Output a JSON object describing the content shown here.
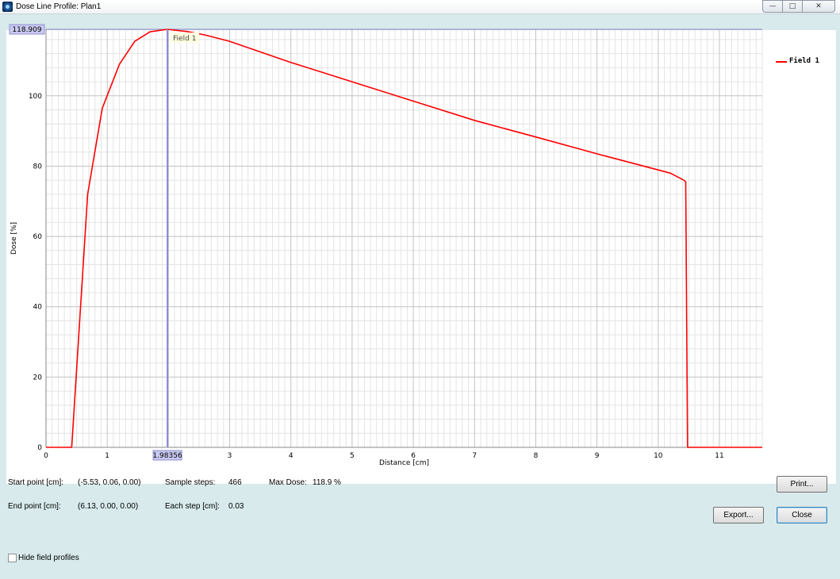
{
  "window": {
    "title": "Dose Line Profile: Plan1",
    "icon": "app-icon",
    "controls": [
      "minimize-icon",
      "maximize-icon",
      "close-icon"
    ]
  },
  "chart_data": {
    "type": "line",
    "title": "",
    "xlabel": "Distance [cm]",
    "ylabel": "Dose [%]",
    "xlim": [
      0,
      11.7
    ],
    "ylim": [
      0,
      118.909
    ],
    "xticks": [
      "0",
      "1",
      "2",
      "3",
      "4",
      "5",
      "6",
      "7",
      "8",
      "9",
      "10",
      "11"
    ],
    "yticks": [
      "0",
      "20",
      "40",
      "60",
      "80",
      "100"
    ],
    "grid": true,
    "legend_position": "right",
    "cursor": {
      "x_label": "1.98356",
      "y_label": "118.909",
      "series_label": "Field 1",
      "x": 1.98356,
      "y": 118.909
    },
    "series": [
      {
        "name": "Field 1",
        "color": "#ff0000",
        "x": [
          0.0,
          0.42,
          0.68,
          0.92,
          1.2,
          1.45,
          1.7,
          1.98,
          2.3,
          2.6,
          3.0,
          4.0,
          5.0,
          6.0,
          7.0,
          8.0,
          9.0,
          10.2,
          10.42,
          10.45,
          10.48,
          11.7
        ],
        "y": [
          0.0,
          0.0,
          72.0,
          96.5,
          109.0,
          115.5,
          118.2,
          118.9,
          118.3,
          117.3,
          115.5,
          109.5,
          104.0,
          98.5,
          93.0,
          88.3,
          83.5,
          78.0,
          76.0,
          75.5,
          0.0,
          0.0
        ]
      }
    ]
  },
  "info": {
    "start_label": "Start point [cm]:",
    "start_value": "(-5.53, 0.06, 0.00)",
    "end_label": "End point [cm]:",
    "end_value": "(6.13, 0.00, 0.00)",
    "sample_label": "Sample steps:",
    "sample_value": "466",
    "step_label": "Each step [cm]:",
    "step_value": "0.03",
    "maxdose_label": "Max Dose:",
    "maxdose_value": "118.9 %"
  },
  "buttons": {
    "print": "Print...",
    "export": "Export...",
    "close": "Close"
  },
  "options": {
    "hide_field_profiles": "Hide field profiles",
    "hide_field_profiles_checked": false
  }
}
